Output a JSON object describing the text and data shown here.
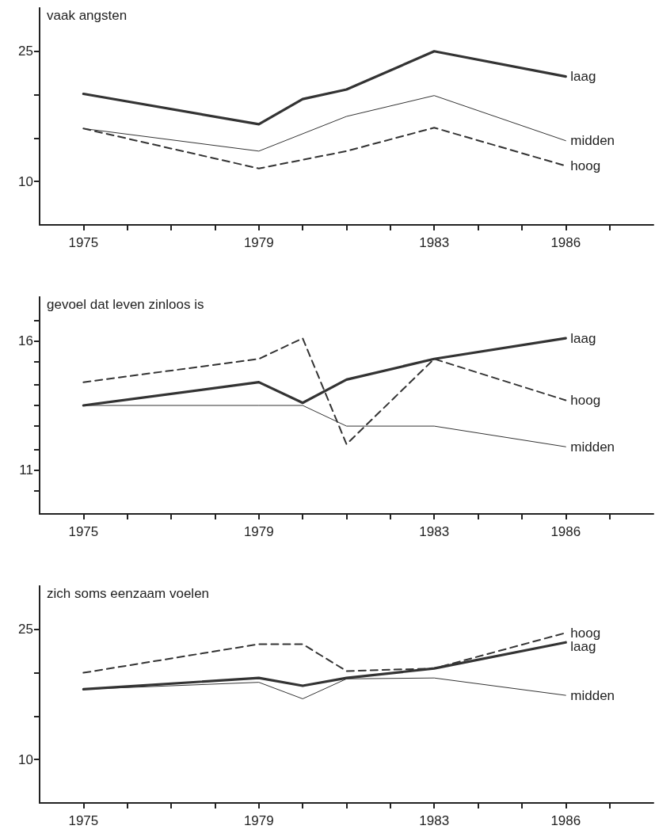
{
  "chart_data": [
    {
      "type": "line",
      "title": "vaak angsten",
      "x": [
        1975,
        1979,
        1980,
        1981,
        1983,
        1986
      ],
      "xlim": [
        1974,
        1988
      ],
      "xticks": [
        1975,
        {
          "value": 1976,
          "label": null
        },
        {
          "value": 1977,
          "label": null
        },
        {
          "value": 1978,
          "label": null
        },
        1979,
        {
          "value": 1980,
          "label": null
        },
        {
          "value": 1981,
          "label": null
        },
        {
          "value": 1982,
          "label": null
        },
        1983,
        {
          "value": 1984,
          "label": null
        },
        {
          "value": 1985,
          "label": null
        },
        1986,
        {
          "value": 1987,
          "label": null
        }
      ],
      "ylim": [
        5,
        30
      ],
      "yticks": [
        10,
        {
          "value": 15,
          "label": null
        },
        {
          "value": 20,
          "label": null
        },
        25
      ],
      "grid": false,
      "legend": false,
      "marker": "none",
      "series": [
        {
          "name": "laag",
          "color": "#333333",
          "line_style": "solid",
          "values": [
            20.1,
            16.6,
            19.5,
            20.6,
            25,
            22.1
          ]
        },
        {
          "name": "midden",
          "color": "#333333",
          "line_style": "solid",
          "x": [
            1975,
            1979,
            1981,
            1983,
            1986
          ],
          "values": [
            16.1,
            13.5,
            17.5,
            19.9,
            14.7
          ]
        },
        {
          "name": "hoog",
          "color": "#333333",
          "line_style": "dashed",
          "x": [
            1975,
            1979,
            1981,
            1983,
            1986
          ],
          "values": [
            16.1,
            11.5,
            13.5,
            16.2,
            11.8
          ]
        }
      ]
    },
    {
      "type": "line",
      "title": "gevoel dat leven zinloos is",
      "x": [
        1975,
        1979,
        1980,
        1981,
        1983,
        1986
      ],
      "xlim": [
        1974,
        1988
      ],
      "xticks": [
        1975,
        {
          "value": 1976,
          "label": null
        },
        {
          "value": 1977,
          "label": null
        },
        {
          "value": 1978,
          "label": null
        },
        1979,
        {
          "value": 1980,
          "label": null
        },
        {
          "value": 1981,
          "label": null
        },
        {
          "value": 1982,
          "label": null
        },
        1983,
        {
          "value": 1984,
          "label": null
        },
        {
          "value": 1985,
          "label": null
        },
        1986,
        {
          "value": 1987,
          "label": null
        }
      ],
      "ylim": [
        9.3,
        17.7
      ],
      "yticks": [
        {
          "value": 10.2,
          "label": null
        },
        11,
        {
          "value": 11.8,
          "label": null
        },
        {
          "value": 12.7,
          "label": null
        },
        {
          "value": 13.5,
          "label": null
        },
        {
          "value": 14.3,
          "label": null
        },
        {
          "value": 15.2,
          "label": null
        },
        16,
        {
          "value": 16.8,
          "label": null
        }
      ],
      "grid": false,
      "legend": false,
      "marker": "none",
      "series": [
        {
          "name": "laag",
          "color": "#333333",
          "line_style": "solid",
          "values": [
            13.5,
            14.4,
            13.6,
            14.5,
            15.3,
            16.1
          ]
        },
        {
          "name": "midden",
          "color": "#333333",
          "line_style": "solid",
          "values": [
            13.5,
            13.5,
            13.5,
            12.7,
            12.7,
            11.9
          ]
        },
        {
          "name": "hoog",
          "color": "#333333",
          "line_style": "dashed",
          "values": [
            14.4,
            15.3,
            16.1,
            12.0,
            15.3,
            13.7
          ]
        }
      ]
    },
    {
      "type": "line",
      "title": "zich soms eenzaam voelen",
      "x": [
        1975,
        1979,
        1980,
        1981,
        1983,
        1986
      ],
      "xlim": [
        1974,
        1988
      ],
      "xticks": [
        1975,
        {
          "value": 1976,
          "label": null
        },
        {
          "value": 1977,
          "label": null
        },
        {
          "value": 1978,
          "label": null
        },
        1979,
        {
          "value": 1980,
          "label": null
        },
        {
          "value": 1981,
          "label": null
        },
        {
          "value": 1982,
          "label": null
        },
        1983,
        {
          "value": 1984,
          "label": null
        },
        {
          "value": 1985,
          "label": null
        },
        1986,
        {
          "value": 1987,
          "label": null
        }
      ],
      "ylim": [
        5,
        30
      ],
      "yticks": [
        10,
        {
          "value": 15,
          "label": null
        },
        {
          "value": 20,
          "label": null
        },
        25
      ],
      "grid": false,
      "legend": false,
      "marker": "none",
      "series": [
        {
          "name": "hoog",
          "color": "#333333",
          "line_style": "dashed",
          "values": [
            20.0,
            23.3,
            23.3,
            20.2,
            20.5,
            24.6
          ]
        },
        {
          "name": "laag",
          "color": "#333333",
          "line_style": "solid",
          "values": [
            18.1,
            19.4,
            18.5,
            19.4,
            20.5,
            23.5
          ]
        },
        {
          "name": "midden",
          "color": "#333333",
          "line_style": "solid",
          "values": [
            18.1,
            18.9,
            17.0,
            19.3,
            19.4,
            17.4
          ]
        }
      ]
    }
  ]
}
